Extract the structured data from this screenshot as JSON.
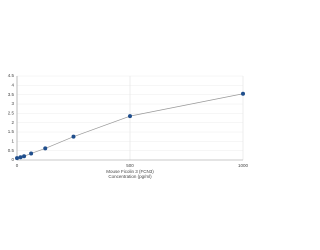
{
  "chart_data": {
    "type": "line",
    "xlabel": [
      "Mouse Ficolin 3 (FCN3)",
      "Concentration (pg/ml)"
    ],
    "x": [
      0,
      15.6,
      31.25,
      62.5,
      125,
      250,
      500,
      1000
    ],
    "values": [
      0.1,
      0.15,
      0.2,
      0.35,
      0.62,
      1.25,
      2.35,
      3.55
    ],
    "color": "#1f4e8c",
    "line_color": "#999999",
    "xlim": [
      0,
      1000
    ],
    "xticks": [
      0,
      500,
      1000
    ],
    "ylim": [
      0,
      4.5
    ],
    "yticks": [
      0,
      0.5,
      1,
      1.5,
      2,
      2.5,
      3,
      3.5,
      4,
      4.5
    ],
    "grid": true
  }
}
